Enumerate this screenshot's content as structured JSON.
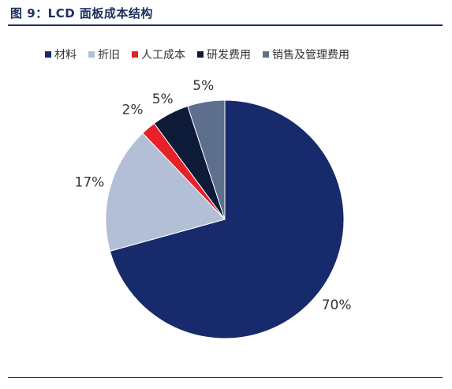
{
  "figure": {
    "title": "图 9：LCD 面板成本结构"
  },
  "chart_data": {
    "type": "pie",
    "title": "图 9：LCD 面板成本结构",
    "slices": [
      {
        "name": "材料",
        "value": 70,
        "label": "70%",
        "color": "#172a6b"
      },
      {
        "name": "折旧",
        "value": 17,
        "label": "17%",
        "color": "#b3bfd6"
      },
      {
        "name": "人工成本",
        "value": 2,
        "label": "2%",
        "color": "#e8202a"
      },
      {
        "name": "研发费用",
        "value": 5,
        "label": "5%",
        "color": "#0d1a38"
      },
      {
        "name": "销售及管理费用",
        "value": 5,
        "label": "5%",
        "color": "#5d6f8c"
      }
    ],
    "legend_position": "top",
    "start": "12 o'clock",
    "direction": "clockwise"
  }
}
